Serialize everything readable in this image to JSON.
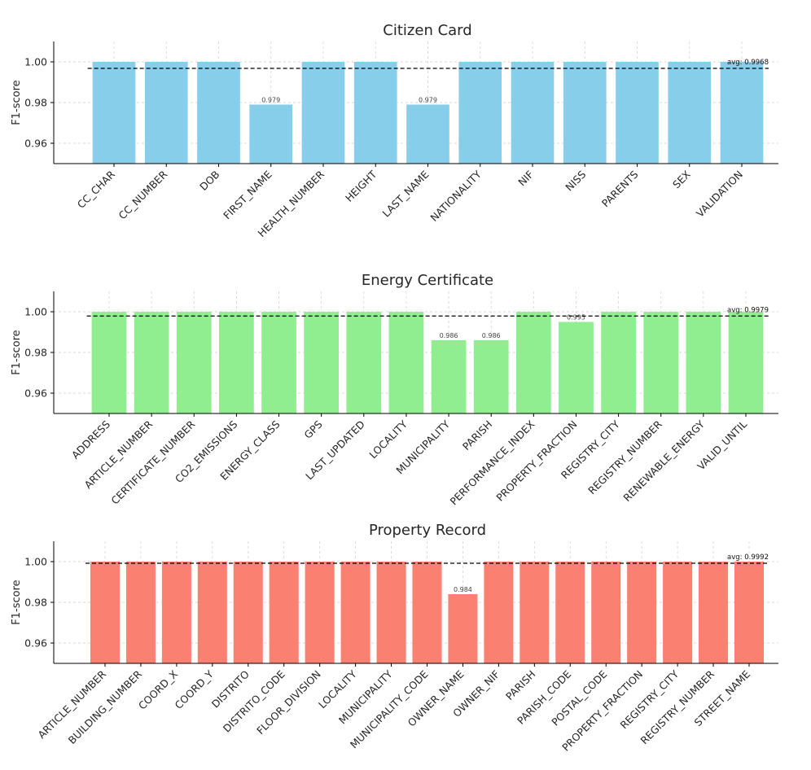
{
  "chart_data": [
    {
      "type": "bar",
      "title": "Citizen Card",
      "ylabel": "F1-score",
      "ylim": [
        0.95,
        1.01
      ],
      "yticks": [
        "0.96",
        "0.98",
        "1.00"
      ],
      "color": "#87ceeb",
      "grid": true,
      "categories": [
        "CC_CHAR",
        "CC_NUMBER",
        "DOB",
        "FIRST_NAME",
        "HEALTH_NUMBER",
        "HEIGHT",
        "LAST_NAME",
        "NATIONALITY",
        "NIF",
        "NISS",
        "PARENTS",
        "SEX",
        "VALIDATION"
      ],
      "values": [
        1.0,
        1.0,
        1.0,
        0.979,
        1.0,
        1.0,
        0.979,
        1.0,
        1.0,
        1.0,
        1.0,
        1.0,
        1.0
      ],
      "value_labels": [
        "",
        "",
        "",
        "0.979",
        "",
        "",
        "0.979",
        "",
        "",
        "",
        "",
        "",
        ""
      ],
      "avg": 0.9968,
      "avg_label": "avg: 0.9968"
    },
    {
      "type": "bar",
      "title": "Energy Certificate",
      "ylabel": "F1-score",
      "ylim": [
        0.95,
        1.01
      ],
      "yticks": [
        "0.96",
        "0.98",
        "1.00"
      ],
      "color": "#90ee90",
      "grid": true,
      "categories": [
        "ADDRESS",
        "ARTICLE_NUMBER",
        "CERTIFICATE_NUMBER",
        "CO2_EMISSIONS",
        "ENERGY_CLASS",
        "GPS",
        "LAST_UPDATED",
        "LOCALITY",
        "MUNICIPALITY",
        "PARISH",
        "PERFORMANCE_INDEX",
        "PROPERTY_FRACTION",
        "REGISTRY_CITY",
        "REGISTRY_NUMBER",
        "RENEWABLE_ENERGY",
        "VALID_UNTIL"
      ],
      "values": [
        1.0,
        1.0,
        1.0,
        1.0,
        1.0,
        1.0,
        1.0,
        1.0,
        0.986,
        0.986,
        1.0,
        0.995,
        1.0,
        1.0,
        1.0,
        1.0
      ],
      "value_labels": [
        "",
        "",
        "",
        "",
        "",
        "",
        "",
        "",
        "0.986",
        "0.986",
        "",
        "0.995",
        "",
        "",
        "",
        ""
      ],
      "avg": 0.9979,
      "avg_label": "avg: 0.9979"
    },
    {
      "type": "bar",
      "title": "Property Record",
      "ylabel": "F1-score",
      "ylim": [
        0.95,
        1.01
      ],
      "yticks": [
        "0.96",
        "0.98",
        "1.00"
      ],
      "color": "#fa8072",
      "grid": true,
      "categories": [
        "ARTICLE_NUMBER",
        "BUILDING_NUMBER",
        "COORD_X",
        "COORD_Y",
        "DISTRITO",
        "DISTRITO_CODE",
        "FLOOR_DIVISION",
        "LOCALITY",
        "MUNICIPALITY",
        "MUNICIPALITY_CODE",
        "OWNER_NAME",
        "OWNER_NIF",
        "PARISH",
        "PARISH_CODE",
        "POSTAL_CODE",
        "PROPERTY_FRACTION",
        "REGISTRY_CITY",
        "REGISTRY_NUMBER",
        "STREET_NAME"
      ],
      "values": [
        1.0,
        1.0,
        1.0,
        1.0,
        1.0,
        1.0,
        1.0,
        1.0,
        1.0,
        1.0,
        0.984,
        1.0,
        1.0,
        1.0,
        1.0,
        1.0,
        1.0,
        1.0,
        1.0
      ],
      "value_labels": [
        "",
        "",
        "",
        "",
        "",
        "",
        "",
        "",
        "",
        "",
        "0.984",
        "",
        "",
        "",
        "",
        "",
        "",
        "",
        ""
      ],
      "avg": 0.9992,
      "avg_label": "avg: 0.9992"
    }
  ]
}
